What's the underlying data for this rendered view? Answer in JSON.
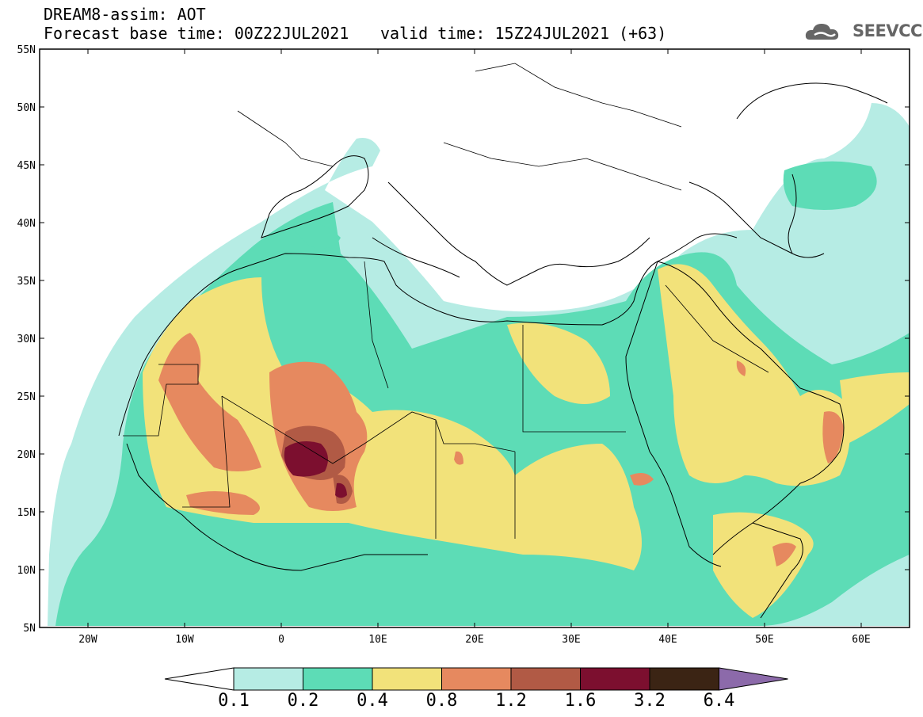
{
  "header": {
    "title": "DREAM8-assim: AOT",
    "base_time": "Forecast base time: 00Z22JUL2021",
    "valid_time": "valid time: 15Z24JUL2021 (+63)"
  },
  "logo": {
    "text": "SEEVCCC",
    "icon": "cloud-logo-icon"
  },
  "map": {
    "lat_ticks": [
      "55N",
      "50N",
      "45N",
      "40N",
      "35N",
      "30N",
      "25N",
      "20N",
      "15N",
      "10N",
      "5N"
    ],
    "lon_ticks": [
      "20W",
      "10W",
      "0",
      "10E",
      "20E",
      "30E",
      "40E",
      "50E",
      "60E"
    ],
    "lat_range": [
      5,
      55
    ],
    "lon_range": [
      -25,
      65
    ]
  },
  "colorbar": {
    "levels": [
      "0.1",
      "0.2",
      "0.4",
      "0.8",
      "1.2",
      "1.6",
      "3.2",
      "6.4"
    ],
    "colors": [
      "#ffffff",
      "#b6ece4",
      "#5ddcb6",
      "#f2e27a",
      "#e6895f",
      "#b15a45",
      "#7c0f2f",
      "#3b2414",
      "#8c6aaa"
    ]
  }
}
